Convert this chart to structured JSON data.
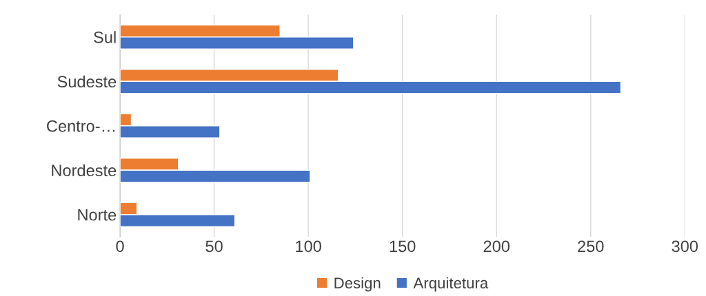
{
  "chart_data": {
    "type": "bar",
    "orientation": "horizontal",
    "categories": [
      "Sul",
      "Sudeste",
      "Centro-…",
      "Nordeste",
      "Norte"
    ],
    "series": [
      {
        "name": "Design",
        "color": "#ed7d31",
        "values": [
          85,
          116,
          6,
          31,
          9
        ]
      },
      {
        "name": "Arquitetura",
        "color": "#4472c4",
        "values": [
          124,
          266,
          53,
          101,
          61
        ]
      }
    ],
    "xlim": [
      0,
      300
    ],
    "xticks": [
      0,
      50,
      100,
      150,
      200,
      250,
      300
    ],
    "grid": "x",
    "legend": "bottom"
  }
}
